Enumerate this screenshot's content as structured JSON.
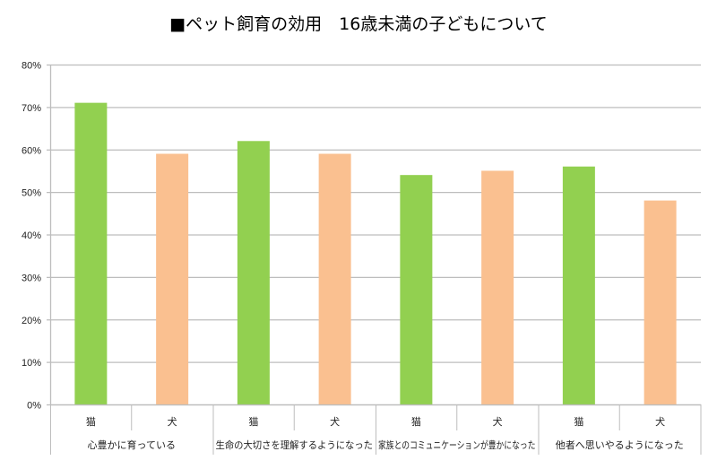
{
  "chart_data": {
    "type": "bar",
    "title": "■ペット飼育の効用　16歳未満の子どもについて",
    "groups": [
      "心豊かに育っている",
      "生命の大切さを理解するようになった",
      "家族とのコミュニケーションが豊かになった",
      "他者へ思いやるようになった"
    ],
    "sub_labels": [
      "猫",
      "犬"
    ],
    "series": [
      {
        "name": "猫",
        "color": "#92d050",
        "values": [
          71,
          62,
          54,
          56
        ]
      },
      {
        "name": "犬",
        "color": "#fac090",
        "values": [
          59,
          59,
          55,
          48
        ]
      }
    ],
    "yticks": [
      "0%",
      "10%",
      "20%",
      "30%",
      "40%",
      "50%",
      "60%",
      "70%",
      "80%"
    ],
    "ylim": [
      0,
      80
    ],
    "unit": "%",
    "grid": true,
    "legend": "none"
  }
}
